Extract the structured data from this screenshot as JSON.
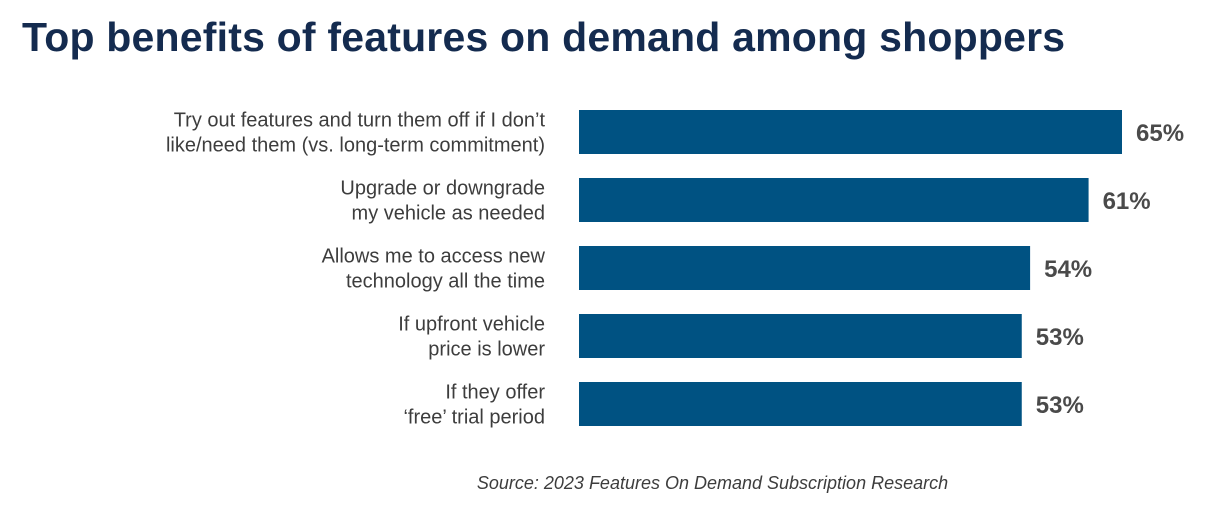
{
  "chart_data": {
    "type": "bar",
    "orientation": "horizontal",
    "title": "Top benefits of features on demand among shoppers",
    "categories": [
      [
        "Try out features and turn them off if I don’t",
        "like/need them (vs. long-term commitment)"
      ],
      [
        "Upgrade or downgrade",
        "my vehicle as needed"
      ],
      [
        "Allows me to access new",
        "technology all the time"
      ],
      [
        "If upfront vehicle",
        "price is lower"
      ],
      [
        "If they offer",
        "‘free’ trial period"
      ]
    ],
    "values": [
      65,
      61,
      54,
      53,
      53
    ],
    "value_labels": [
      "65%",
      "61%",
      "54%",
      "53%",
      "53%"
    ],
    "unit": "%",
    "xlim": [
      0,
      100
    ],
    "bar_color": "#005282",
    "source": "Source: 2023 Features On Demand Subscription Research"
  }
}
